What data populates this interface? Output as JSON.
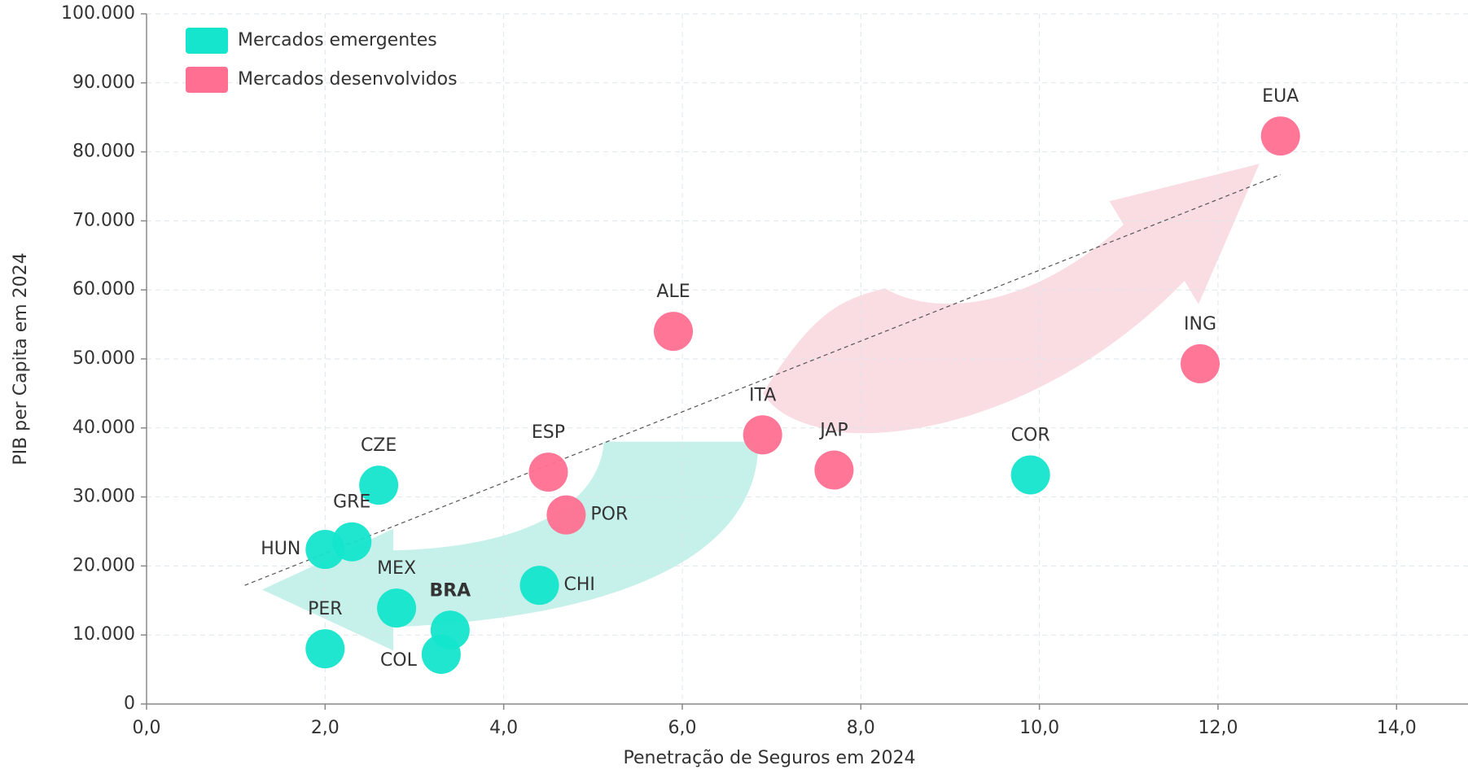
{
  "chart_data": {
    "type": "scatter",
    "x_label": "Penetração de Seguros em 2024",
    "y_label": "PIB per Capita em 2024",
    "xlim": [
      0,
      14.8
    ],
    "ylim": [
      0,
      100000
    ],
    "xticks": [
      {
        "value": 0,
        "label": "0,0"
      },
      {
        "value": 2,
        "label": "2,0"
      },
      {
        "value": 4,
        "label": "4,0"
      },
      {
        "value": 6,
        "label": "6,0"
      },
      {
        "value": 8,
        "label": "8,0"
      },
      {
        "value": 10,
        "label": "10,0"
      },
      {
        "value": 12,
        "label": "12,0"
      },
      {
        "value": 14,
        "label": "14,0"
      }
    ],
    "yticks": [
      0,
      {
        "value": 10000,
        "label": "10.000"
      },
      {
        "value": 20000,
        "label": "20.000"
      },
      {
        "value": 30000,
        "label": "30.000"
      },
      {
        "value": 40000,
        "label": "40.000"
      },
      {
        "value": 50000,
        "label": "50.000"
      },
      {
        "value": 60000,
        "label": "60.000"
      },
      {
        "value": 70000,
        "label": "70.000"
      },
      {
        "value": 80000,
        "label": "80.000"
      },
      {
        "value": 90000,
        "label": "90.000"
      },
      {
        "value": 100000,
        "label": "100.000"
      }
    ],
    "grid": true,
    "legend": "top-left",
    "series": [
      {
        "name": "Mercados emergentes",
        "color": "#14e5cc",
        "labels": [
          "CZE",
          "GRE",
          "HUN",
          "MEX",
          "BRA",
          "PER",
          "COL",
          "CHI",
          "COR"
        ],
        "x": [
          2.6,
          2.3,
          2.0,
          2.8,
          3.4,
          2.0,
          3.3,
          4.4,
          9.9
        ],
        "values": [
          31700,
          23500,
          22400,
          13900,
          10700,
          8000,
          7200,
          17200,
          33200
        ]
      },
      {
        "name": "Mercados desenvolvidos",
        "color": "#ff6f91",
        "labels": [
          "ESP",
          "POR",
          "ALE",
          "ITA",
          "JAP",
          "ING",
          "EUA"
        ],
        "x": [
          4.5,
          4.7,
          5.9,
          6.9,
          7.7,
          11.8,
          12.7
        ],
        "values": [
          33600,
          27400,
          54000,
          39000,
          33900,
          49300,
          82300
        ]
      }
    ],
    "trend_line": {
      "x": [
        1.1,
        12.7
      ],
      "values": [
        17200,
        76700
      ]
    }
  }
}
